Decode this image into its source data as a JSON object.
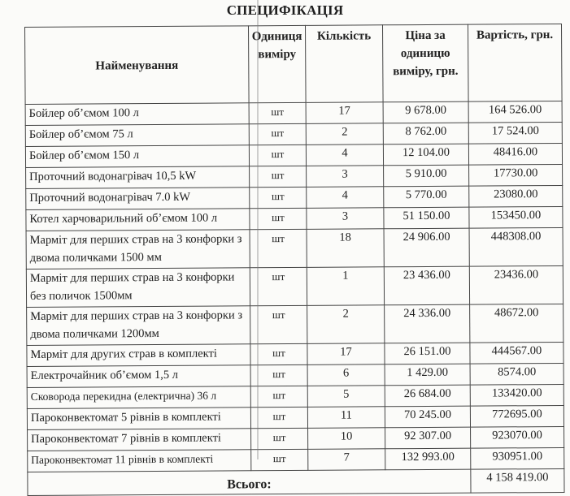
{
  "title": "СПЕЦИФІКАЦІЯ",
  "headers": {
    "name": "Найменування",
    "unit": "Одиниця виміру",
    "quantity": "Кількість",
    "price": "Ціна за одиницю виміру, грн.",
    "total": "Вартість, грн."
  },
  "rows": [
    {
      "name": "Бойлер об’ємом 100 л",
      "unit": "шт",
      "quantity": "17",
      "price": "9 678.00",
      "total": "164 526.00"
    },
    {
      "name": "Бойлер об’ємом 75 л",
      "unit": "шт",
      "quantity": "2",
      "price": "8 762.00",
      "total": "17 524.00"
    },
    {
      "name": "Бойлер об’ємом 150 л",
      "unit": "шт",
      "quantity": "4",
      "price": "12 104.00",
      "total": "48416.00"
    },
    {
      "name": "Проточний водонагрівач 10,5 kW",
      "unit": "шт",
      "quantity": "3",
      "price": "5 910.00",
      "total": "17730.00"
    },
    {
      "name": "Проточний водонагрівач  7.0 kW",
      "unit": "шт",
      "quantity": "4",
      "price": "5 770.00",
      "total": "23080.00"
    },
    {
      "name": "Котел харчоварильний об’ємом 100 л",
      "unit": "шт",
      "quantity": "3",
      "price": "51 150.00",
      "total": "153450.00"
    },
    {
      "name": "Марміт для перших страв на 3 конфорки з двома поличками 1500 мм",
      "unit": "шт",
      "quantity": "18",
      "price": "24 906.00",
      "total": "448308.00"
    },
    {
      "name": "Марміт для перших страв на 3 конфорки без поличок 1500мм",
      "unit": "шт",
      "quantity": "1",
      "price": "23 436.00",
      "total": "23436.00"
    },
    {
      "name": "Марміт для перших страв на 3 конфорки з двома поличками 1200мм",
      "unit": "шт",
      "quantity": "2",
      "price": "24 336.00",
      "total": "48672.00"
    },
    {
      "name": "Марміт для других страв   в комплекті",
      "unit": "шт",
      "quantity": "17",
      "price": "26 151.00",
      "total": "444567.00"
    },
    {
      "name": "Електрочайник об’ємом 1,5 л",
      "unit": "шт",
      "quantity": "6",
      "price": "1 429.00",
      "total": "8574.00"
    },
    {
      "name": "Сковорода перекидна (електрична) 36 л",
      "unit": "шт",
      "quantity": "5",
      "price": "26 684.00",
      "total": "133420.00"
    },
    {
      "name": "Пароконвектомат 5 рівнів в комплекті",
      "unit": "шт",
      "quantity": "11",
      "price": "70 245.00",
      "total": "772695.00"
    },
    {
      "name": "Пароконвектомат 7 рівнів в комплекті",
      "unit": "шт",
      "quantity": "10",
      "price": "92 307.00",
      "total": "923070.00"
    },
    {
      "name": "Пароконвектомат 11 рівнів в комплекті",
      "unit": "шт",
      "quantity": "7",
      "price": "132 993.00",
      "total": "930951.00"
    }
  ],
  "footer": {
    "label": "Всього:",
    "total": "4 158 419.00"
  }
}
